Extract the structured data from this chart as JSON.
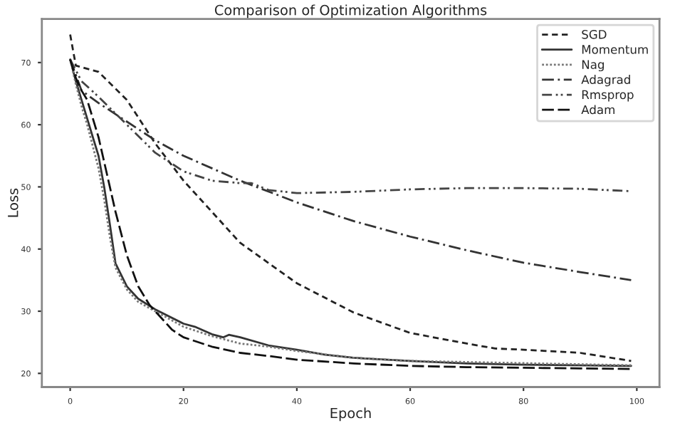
{
  "chart_data": {
    "type": "line",
    "title": "Comparison of Optimization Algorithms",
    "xlabel": "Epoch",
    "ylabel": "Loss",
    "xlim": [
      -5,
      104
    ],
    "ylim": [
      17.8,
      77
    ],
    "xticks": [
      0,
      20,
      40,
      60,
      80,
      100
    ],
    "yticks": [
      20,
      30,
      40,
      50,
      60,
      70
    ],
    "grid": false,
    "legend": "top right",
    "marker": "none",
    "series": [
      {
        "name": "SGD",
        "color": "#222222",
        "line_style": "dashed",
        "x": [
          0,
          1,
          5,
          10,
          15,
          20,
          30,
          40,
          50,
          60,
          70,
          75,
          80,
          90,
          99
        ],
        "values": [
          74.5,
          69.5,
          68.5,
          64,
          57,
          51,
          41,
          34.5,
          29.8,
          26.5,
          24.8,
          24,
          23.8,
          23.3,
          22
        ]
      },
      {
        "name": "Momentum",
        "color": "#333333",
        "line_style": "solid",
        "x": [
          0,
          1,
          2,
          3,
          4,
          5,
          6,
          7,
          8,
          10,
          12,
          15,
          20,
          22,
          25,
          27,
          28,
          30,
          35,
          40,
          45,
          50,
          60,
          70,
          80,
          99
        ],
        "values": [
          70.5,
          67,
          64,
          61,
          58,
          55,
          50,
          44,
          37.7,
          34,
          32,
          30.3,
          28,
          27.5,
          26.3,
          25.8,
          26.2,
          25.8,
          24.5,
          23.8,
          23,
          22.5,
          22,
          21.6,
          21.4,
          21.2
        ]
      },
      {
        "name": "Nag",
        "color": "#777777",
        "line_style": "dotted",
        "x": [
          0,
          1,
          2,
          3,
          4,
          5,
          6,
          7,
          8,
          10,
          12,
          15,
          20,
          25,
          30,
          35,
          40,
          50,
          60,
          99
        ],
        "values": [
          70.5,
          66.5,
          63,
          60,
          56.5,
          53,
          48,
          42,
          37,
          33.5,
          31.5,
          30,
          27.5,
          26,
          24.8,
          24.3,
          23.6,
          22.5,
          22,
          21.3
        ]
      },
      {
        "name": "Adagrad",
        "color": "#333333",
        "line_style": "dashdot",
        "x": [
          0,
          2,
          5,
          10,
          15,
          20,
          30,
          40,
          50,
          60,
          70,
          80,
          90,
          99
        ],
        "values": [
          70.5,
          65.5,
          63.5,
          60.5,
          57.5,
          55,
          51,
          47.5,
          44.5,
          42,
          39.8,
          37.8,
          36.3,
          35
        ]
      },
      {
        "name": "Rmsprop",
        "color": "#444444",
        "line_style": "dashdotdot",
        "x": [
          0,
          2,
          5,
          10,
          15,
          20,
          25,
          30,
          32,
          35,
          40,
          50,
          60,
          70,
          80,
          90,
          99
        ],
        "values": [
          70.5,
          67,
          64.5,
          60,
          55.5,
          52.5,
          51,
          50.6,
          50.6,
          49.5,
          49,
          49.2,
          49.6,
          49.8,
          49.8,
          49.7,
          49.3
        ]
      },
      {
        "name": "Adam",
        "color": "#111111",
        "line_style": "longdash",
        "x": [
          0,
          1,
          2,
          3,
          4,
          5,
          6,
          7,
          8,
          10,
          12,
          14,
          16,
          18,
          20,
          25,
          30,
          35,
          40,
          50,
          60,
          70,
          80,
          90,
          99
        ],
        "values": [
          70.5,
          67.5,
          65.5,
          64,
          61,
          58,
          54,
          50,
          46,
          39,
          34,
          31,
          29,
          27,
          25.8,
          24.3,
          23.3,
          22.8,
          22.2,
          21.6,
          21.2,
          21,
          20.9,
          20.8,
          20.7
        ]
      }
    ]
  }
}
